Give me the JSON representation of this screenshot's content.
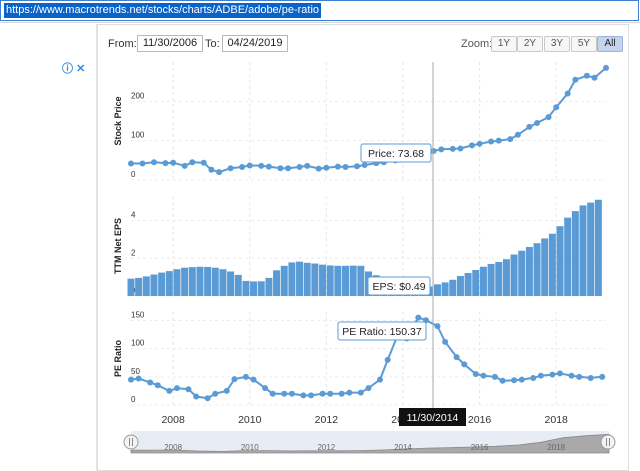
{
  "browser": {
    "url": "https://www.macrotrends.net/stocks/charts/ADBE/adobe/pe-ratio"
  },
  "ad": {
    "info_icon": "ⓘ",
    "close_icon": "✕"
  },
  "controls": {
    "from_label": "From:",
    "from_value": "11/30/2006",
    "to_label": "To:",
    "to_value": "04/24/2019",
    "zoom_label": "Zoom:",
    "zoom_buttons": [
      "1Y",
      "2Y",
      "3Y",
      "5Y",
      "All"
    ],
    "zoom_active": "All"
  },
  "colors": {
    "series": "#5b9bd5",
    "bars": "#5b9bd5",
    "crosshair": "#aaaaaa",
    "tooltip_bg": "#ffffff",
    "date_flag": "#111111",
    "url_highlight": "#0a63c9"
  },
  "chart_data": [
    {
      "type": "line",
      "ylabel": "Stock Price",
      "yticks": [
        0,
        100,
        200
      ],
      "ylim": [
        0,
        300
      ],
      "x": [
        2006.9,
        2007.2,
        2007.5,
        2007.8,
        2008.0,
        2008.3,
        2008.5,
        2008.8,
        2009.0,
        2009.2,
        2009.5,
        2009.8,
        2010.0,
        2010.3,
        2010.5,
        2010.8,
        2011.0,
        2011.3,
        2011.5,
        2011.8,
        2012.0,
        2012.3,
        2012.5,
        2012.8,
        2013.0,
        2013.3,
        2013.5,
        2013.8,
        2014.0,
        2014.3,
        2014.5,
        2014.8,
        2015.0,
        2015.3,
        2015.5,
        2015.8,
        2016.0,
        2016.3,
        2016.5,
        2016.8,
        2017.0,
        2017.3,
        2017.5,
        2017.8,
        2018.0,
        2018.3,
        2018.5,
        2018.8,
        2019.0,
        2019.3
      ],
      "values": [
        42,
        42,
        45,
        43,
        44,
        36,
        45,
        44,
        26,
        20,
        30,
        33,
        37,
        36,
        34,
        30,
        30,
        33,
        36,
        29,
        31,
        34,
        33,
        35,
        38,
        43,
        45,
        50,
        56,
        63,
        70,
        73.68,
        78,
        79,
        80,
        88,
        92,
        98,
        100,
        104,
        115,
        135,
        145,
        160,
        185,
        220,
        255,
        265,
        260,
        285
      ],
      "tooltip": {
        "label": "Price: 73.68"
      }
    },
    {
      "type": "bar",
      "ylabel": "TTM Net EPS",
      "yticks": [
        0,
        2,
        4
      ],
      "ylim": [
        0,
        5.3
      ],
      "x": [
        2006.9,
        2007.1,
        2007.3,
        2007.5,
        2007.7,
        2007.9,
        2008.1,
        2008.3,
        2008.5,
        2008.7,
        2008.9,
        2009.1,
        2009.3,
        2009.5,
        2009.7,
        2009.9,
        2010.1,
        2010.3,
        2010.5,
        2010.7,
        2010.9,
        2011.1,
        2011.3,
        2011.5,
        2011.7,
        2011.9,
        2012.1,
        2012.3,
        2012.5,
        2012.7,
        2012.9,
        2013.1,
        2013.3,
        2013.5,
        2013.7,
        2013.9,
        2014.1,
        2014.3,
        2014.5,
        2014.7,
        2014.9,
        2015.1,
        2015.3,
        2015.5,
        2015.7,
        2015.9,
        2016.1,
        2016.3,
        2016.5,
        2016.7,
        2016.9,
        2017.1,
        2017.3,
        2017.5,
        2017.7,
        2017.9,
        2018.1,
        2018.3,
        2018.5,
        2018.7,
        2018.9,
        2019.1
      ],
      "values": [
        0.92,
        0.96,
        1.04,
        1.14,
        1.24,
        1.32,
        1.42,
        1.5,
        1.53,
        1.55,
        1.54,
        1.5,
        1.42,
        1.3,
        1.12,
        0.8,
        0.77,
        0.78,
        0.96,
        1.36,
        1.6,
        1.78,
        1.82,
        1.76,
        1.72,
        1.66,
        1.62,
        1.6,
        1.6,
        1.61,
        1.6,
        1.3,
        1.1,
        0.72,
        0.62,
        0.58,
        0.56,
        0.52,
        0.49,
        0.5,
        0.62,
        0.72,
        0.86,
        1.06,
        1.22,
        1.38,
        1.55,
        1.7,
        1.8,
        1.95,
        2.2,
        2.4,
        2.6,
        2.8,
        3.05,
        3.3,
        3.7,
        4.15,
        4.5,
        4.8,
        4.95,
        5.1
      ],
      "tooltip": {
        "label": "EPS: $0.49"
      }
    },
    {
      "type": "line",
      "ylabel": "PE Ratio",
      "yticks": [
        0,
        50,
        100,
        150
      ],
      "ylim": [
        0,
        165
      ],
      "x": [
        2006.9,
        2007.1,
        2007.4,
        2007.6,
        2007.9,
        2008.1,
        2008.4,
        2008.6,
        2008.9,
        2009.1,
        2009.4,
        2009.6,
        2009.9,
        2010.1,
        2010.4,
        2010.6,
        2010.9,
        2011.1,
        2011.4,
        2011.6,
        2011.9,
        2012.1,
        2012.4,
        2012.6,
        2012.9,
        2013.1,
        2013.4,
        2013.6,
        2013.9,
        2014.1,
        2014.4,
        2014.6,
        2014.9,
        2015.1,
        2015.4,
        2015.6,
        2015.9,
        2016.1,
        2016.4,
        2016.6,
        2016.9,
        2017.1,
        2017.4,
        2017.6,
        2017.9,
        2018.1,
        2018.4,
        2018.6,
        2018.9,
        2019.2
      ],
      "values": [
        45,
        47,
        40,
        35,
        25,
        30,
        28,
        15,
        12,
        20,
        25,
        46,
        50,
        45,
        30,
        20,
        20,
        20,
        17,
        17,
        20,
        20,
        20,
        22,
        22,
        30,
        45,
        80,
        130,
        118,
        155,
        150.37,
        140,
        112,
        85,
        72,
        55,
        52,
        50,
        43,
        44,
        45,
        48,
        52,
        54,
        56,
        52,
        50,
        48,
        50
      ],
      "tooltip": {
        "label": "PE Ratio: 150.37"
      }
    }
  ],
  "xaxis": {
    "ticks": [
      "2008",
      "2010",
      "2012",
      "2014",
      "2016",
      "2018"
    ],
    "hover_date": "11/30/2014"
  },
  "navigator": {
    "labels": [
      "2008",
      "2010",
      "2012",
      "2014",
      "2016",
      "2018"
    ],
    "values": [
      42,
      44,
      43,
      30,
      24,
      35,
      36,
      32,
      33,
      33,
      36,
      45,
      60,
      74,
      80,
      90,
      100,
      120,
      160,
      230,
      260,
      280
    ]
  }
}
